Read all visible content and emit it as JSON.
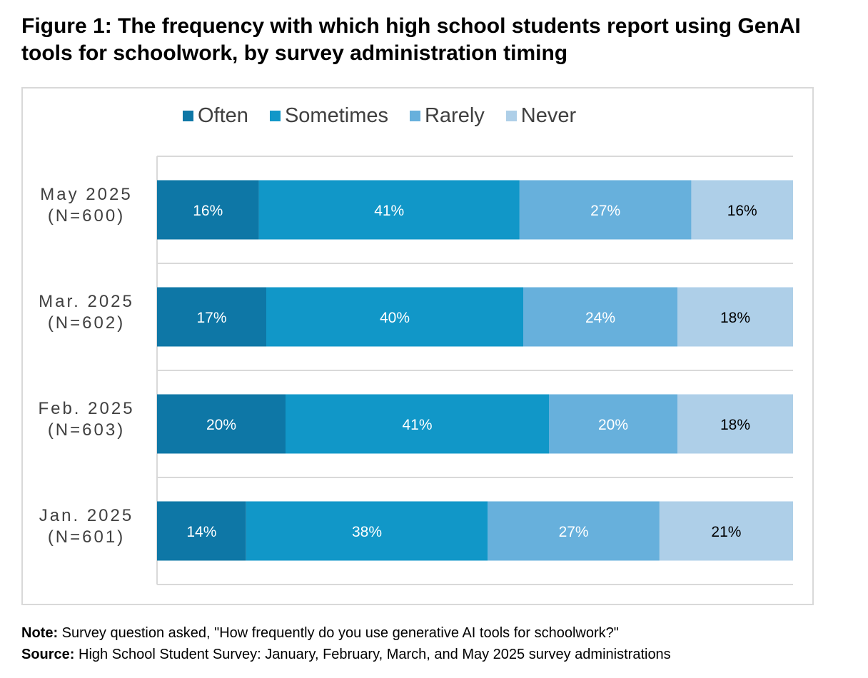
{
  "figure": {
    "label": "Figure 1:",
    "title": "The frequency with which high school students report using GenAI tools for schoolwork, by survey administration timing"
  },
  "colors": {
    "Often": "#0e77a6",
    "Sometimes": "#1197c8",
    "Rarely": "#67b0dc",
    "Never": "#aecfe8",
    "gridline": "#d9d9d9",
    "label_light": "#ffffff",
    "label_dark": "#000000"
  },
  "chart_data": {
    "type": "bar",
    "orientation": "horizontal",
    "stacked": true,
    "percent_stacked": true,
    "categories": [
      [
        "May 2025",
        "(N=600)"
      ],
      [
        "Mar. 2025",
        "(N=602)"
      ],
      [
        "Feb. 2025",
        "(N=603)"
      ],
      [
        "Jan. 2025",
        "(N=601)"
      ]
    ],
    "series": [
      {
        "name": "Often",
        "values": [
          16,
          17,
          20,
          14
        ]
      },
      {
        "name": "Sometimes",
        "values": [
          41,
          40,
          41,
          38
        ]
      },
      {
        "name": "Rarely",
        "values": [
          27,
          24,
          20,
          27
        ]
      },
      {
        "name": "Never",
        "values": [
          16,
          18,
          18,
          21
        ]
      }
    ],
    "value_suffix": "%",
    "legend_position": "top",
    "title": "",
    "xlabel": "",
    "ylabel": ""
  },
  "notes": {
    "note_label": "Note:",
    "note_text": " Survey question asked, \"How frequently do you use generative AI tools for schoolwork?\"",
    "source_label": "Source:",
    "source_text": " High School Student Survey: January, February, March, and May 2025 survey administrations"
  }
}
